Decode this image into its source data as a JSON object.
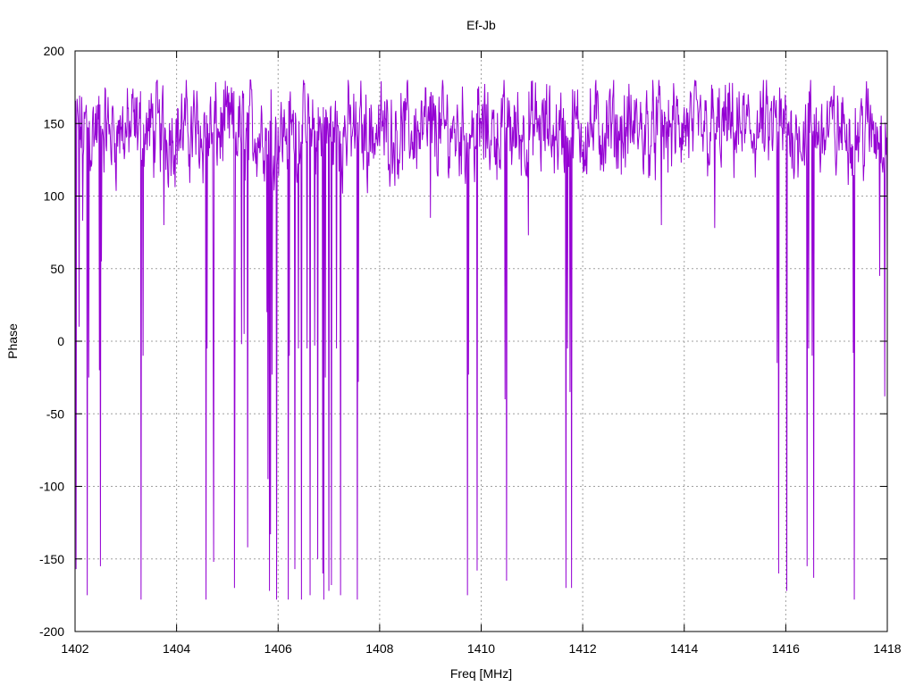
{
  "chart_data": {
    "type": "line",
    "title": "Ef-Jb",
    "xlabel": "Freq [MHz]",
    "ylabel": "Phase",
    "xlim": [
      1402,
      1418
    ],
    "ylim": [
      -200,
      200
    ],
    "xticks": [
      1402,
      1404,
      1406,
      1408,
      1410,
      1412,
      1414,
      1416,
      1418
    ],
    "yticks": [
      -200,
      -150,
      -100,
      -50,
      0,
      50,
      100,
      150,
      200
    ],
    "grid": true,
    "series": [
      {
        "color": "#9400d3",
        "baseline_range": [
          100,
          180
        ],
        "dips": [
          {
            "x": 1402.02,
            "y": -157
          },
          {
            "x": 1402.08,
            "y": 10
          },
          {
            "x": 1402.15,
            "y": 83
          },
          {
            "x": 1402.24,
            "y": -175
          },
          {
            "x": 1402.27,
            "y": -25
          },
          {
            "x": 1402.48,
            "y": -20
          },
          {
            "x": 1402.5,
            "y": -155
          },
          {
            "x": 1402.52,
            "y": 55
          },
          {
            "x": 1403.3,
            "y": -178
          },
          {
            "x": 1403.34,
            "y": -10
          },
          {
            "x": 1403.75,
            "y": 80
          },
          {
            "x": 1404.58,
            "y": -178
          },
          {
            "x": 1404.6,
            "y": -5
          },
          {
            "x": 1404.72,
            "y": 8
          },
          {
            "x": 1404.73,
            "y": -152
          },
          {
            "x": 1405.14,
            "y": -170
          },
          {
            "x": 1405.15,
            "y": -18
          },
          {
            "x": 1405.28,
            "y": -2
          },
          {
            "x": 1405.33,
            "y": 5
          },
          {
            "x": 1405.4,
            "y": -142
          },
          {
            "x": 1405.78,
            "y": 20
          },
          {
            "x": 1405.8,
            "y": -95
          },
          {
            "x": 1405.83,
            "y": -172
          },
          {
            "x": 1405.85,
            "y": -133
          },
          {
            "x": 1405.88,
            "y": -23
          },
          {
            "x": 1405.97,
            "y": -178
          },
          {
            "x": 1406.2,
            "y": -178
          },
          {
            "x": 1406.22,
            "y": -10
          },
          {
            "x": 1406.33,
            "y": -157
          },
          {
            "x": 1406.4,
            "y": -5
          },
          {
            "x": 1406.46,
            "y": -178
          },
          {
            "x": 1406.57,
            "y": -5
          },
          {
            "x": 1406.63,
            "y": -175
          },
          {
            "x": 1406.72,
            "y": -3
          },
          {
            "x": 1406.78,
            "y": -150
          },
          {
            "x": 1406.88,
            "y": -160
          },
          {
            "x": 1406.9,
            "y": -178
          },
          {
            "x": 1406.93,
            "y": -25
          },
          {
            "x": 1407.0,
            "y": -172
          },
          {
            "x": 1407.05,
            "y": -168
          },
          {
            "x": 1407.15,
            "y": -5
          },
          {
            "x": 1407.23,
            "y": -175
          },
          {
            "x": 1407.56,
            "y": -178
          },
          {
            "x": 1407.58,
            "y": -28
          },
          {
            "x": 1409.0,
            "y": 85
          },
          {
            "x": 1409.73,
            "y": -175
          },
          {
            "x": 1409.75,
            "y": -23
          },
          {
            "x": 1409.92,
            "y": -158
          },
          {
            "x": 1410.47,
            "y": -40
          },
          {
            "x": 1410.5,
            "y": -165
          },
          {
            "x": 1410.93,
            "y": 73
          },
          {
            "x": 1411.67,
            "y": -170
          },
          {
            "x": 1411.7,
            "y": -5
          },
          {
            "x": 1411.75,
            "y": -35
          },
          {
            "x": 1411.78,
            "y": -170
          },
          {
            "x": 1413.55,
            "y": 80
          },
          {
            "x": 1414.6,
            "y": 78
          },
          {
            "x": 1415.83,
            "y": -15
          },
          {
            "x": 1415.86,
            "y": -160
          },
          {
            "x": 1416.02,
            "y": -172
          },
          {
            "x": 1416.42,
            "y": -155
          },
          {
            "x": 1416.45,
            "y": -5
          },
          {
            "x": 1416.52,
            "y": -10
          },
          {
            "x": 1416.55,
            "y": -163
          },
          {
            "x": 1417.33,
            "y": -8
          },
          {
            "x": 1417.35,
            "y": -178
          },
          {
            "x": 1417.85,
            "y": 45
          },
          {
            "x": 1417.95,
            "y": -38
          },
          {
            "x": 1418.0,
            "y": 50
          }
        ]
      }
    ]
  }
}
